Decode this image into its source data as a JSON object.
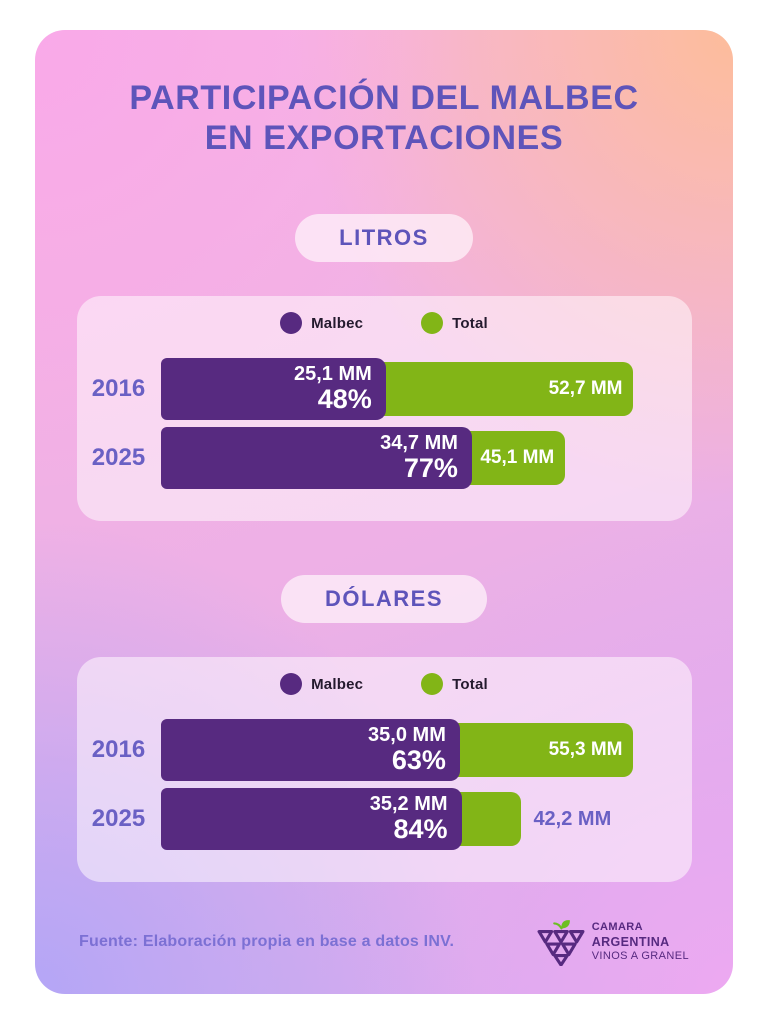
{
  "page": {
    "title_line1": "PARTICIPACIÓN DEL MALBEC",
    "title_line2": "EN EXPORTACIONES",
    "footer_source": "Fuente: Elaboración propia en base a datos INV.",
    "logo": {
      "icon": "grape-bunch-of-triangles-with-leaf",
      "line1": "CAMARA",
      "line2": "ARGENTINA",
      "line3": "VINOS A GRANEL"
    }
  },
  "colors": {
    "malbec_purple": "#572a80",
    "total_green": "#82b517",
    "title_text": "#5e54ba",
    "year_label_text": "#6a60c4",
    "legend_text": "#241a2e",
    "footer_text": "#7c70d4",
    "logo_purple": "#572a80",
    "leaf_green": "#6cbf22",
    "card_corner_top_left": "#f9a9e9",
    "card_corner_top_right": "#fdbd9b",
    "card_corner_bottom_left": "#b4a6f6",
    "card_corner_bottom_right": "#eda9f1"
  },
  "chart_data": [
    {
      "type": "bar",
      "title": "LITROS",
      "unit": "MM",
      "legend": [
        "Malbec",
        "Total"
      ],
      "legend_position": "top",
      "grid": false,
      "categories": [
        "2016",
        "2025"
      ],
      "series": [
        {
          "name": "Malbec",
          "values": [
            25.1,
            34.7
          ],
          "value_labels": [
            "25,1 MM",
            "34,7 MM"
          ],
          "share_pct": [
            48,
            77
          ],
          "share_labels": [
            "48%",
            "77%"
          ]
        },
        {
          "name": "Total",
          "values": [
            52.7,
            45.1
          ],
          "value_labels": [
            "52,7 MM",
            "45,1 MM"
          ]
        }
      ],
      "xlim": [
        0,
        52.7
      ],
      "total_label_inside": [
        true,
        true
      ]
    },
    {
      "type": "bar",
      "title": "DÓLARES",
      "unit": "MM",
      "legend": [
        "Malbec",
        "Total"
      ],
      "legend_position": "top",
      "grid": false,
      "categories": [
        "2016",
        "2025"
      ],
      "series": [
        {
          "name": "Malbec",
          "values": [
            35.0,
            35.2
          ],
          "value_labels": [
            "35,0 MM",
            "35,2 MM"
          ],
          "share_pct": [
            63,
            84
          ],
          "share_labels": [
            "63%",
            "84%"
          ]
        },
        {
          "name": "Total",
          "values": [
            55.3,
            42.2
          ],
          "value_labels": [
            "55,3 MM",
            "42,2 MM"
          ]
        }
      ],
      "xlim": [
        0,
        55.3
      ],
      "total_label_inside": [
        true,
        false
      ]
    }
  ]
}
